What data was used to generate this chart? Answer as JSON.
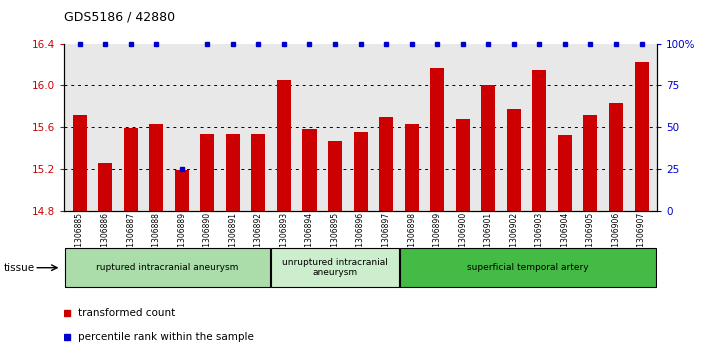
{
  "title": "GDS5186 / 42880",
  "samples": [
    "GSM1306885",
    "GSM1306886",
    "GSM1306887",
    "GSM1306888",
    "GSM1306889",
    "GSM1306890",
    "GSM1306891",
    "GSM1306892",
    "GSM1306893",
    "GSM1306894",
    "GSM1306895",
    "GSM1306896",
    "GSM1306897",
    "GSM1306898",
    "GSM1306899",
    "GSM1306900",
    "GSM1306901",
    "GSM1306902",
    "GSM1306903",
    "GSM1306904",
    "GSM1306905",
    "GSM1306906",
    "GSM1306907"
  ],
  "values": [
    15.72,
    15.26,
    15.59,
    15.63,
    15.19,
    15.53,
    15.53,
    15.53,
    16.05,
    15.58,
    15.47,
    15.55,
    15.7,
    15.63,
    16.17,
    15.68,
    16.0,
    15.77,
    16.15,
    15.52,
    15.72,
    15.83,
    16.22
  ],
  "percentile_ranks": [
    100,
    100,
    100,
    100,
    25,
    100,
    100,
    100,
    100,
    100,
    100,
    100,
    100,
    100,
    100,
    100,
    100,
    100,
    100,
    100,
    100,
    100,
    100
  ],
  "groups": [
    {
      "label": "ruptured intracranial aneurysm",
      "start": 0,
      "end": 8,
      "color": "#aaddaa"
    },
    {
      "label": "unruptured intracranial\naneurysm",
      "start": 8,
      "end": 13,
      "color": "#cceecc"
    },
    {
      "label": "superficial temporal artery",
      "start": 13,
      "end": 23,
      "color": "#44bb44"
    }
  ],
  "bar_color": "#cc0000",
  "percentile_color": "#0000cc",
  "ylim_left": [
    14.8,
    16.4
  ],
  "ylim_right": [
    0,
    100
  ],
  "yticks_left": [
    14.8,
    15.2,
    15.6,
    16.0,
    16.4
  ],
  "yticks_right": [
    0,
    25,
    50,
    75,
    100
  ],
  "background_color": "#e8e8e8",
  "tissue_label": "tissue",
  "legend_items": [
    {
      "label": "transformed count",
      "color": "#cc0000"
    },
    {
      "label": "percentile rank within the sample",
      "color": "#0000cc"
    }
  ]
}
